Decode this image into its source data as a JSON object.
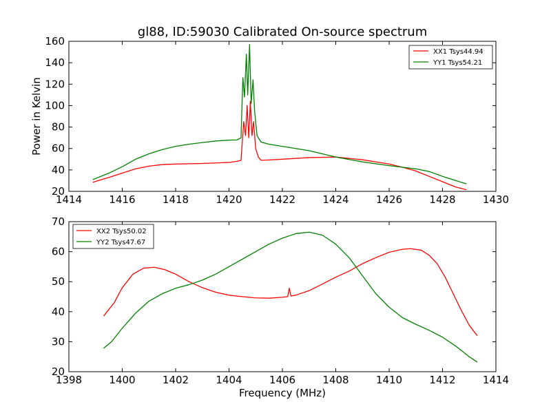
{
  "chart_data": [
    {
      "type": "line",
      "title": "gl88, ID:59030 Calibrated On-source spectrum",
      "xlabel": "",
      "ylabel": "Power in Kelvin",
      "xlim": [
        1414,
        1430
      ],
      "ylim": [
        20,
        160
      ],
      "xticks": [
        "1414",
        "1416",
        "1418",
        "1420",
        "1422",
        "1424",
        "1426",
        "1428",
        "1430"
      ],
      "yticks": [
        "20",
        "40",
        "60",
        "80",
        "100",
        "120",
        "140",
        "160"
      ],
      "legend_position": "top-right",
      "series": [
        {
          "name": "XX1 Tsys44.94",
          "color": "#ff0000",
          "points": [
            [
              1414.9,
              28.5
            ],
            [
              1415.5,
              33
            ],
            [
              1416,
              37
            ],
            [
              1416.5,
              41
            ],
            [
              1417,
              43.5
            ],
            [
              1417.5,
              45
            ],
            [
              1418,
              45.5
            ],
            [
              1419,
              46
            ],
            [
              1419.5,
              46.5
            ],
            [
              1420,
              47
            ],
            [
              1420.3,
              48
            ],
            [
              1420.45,
              49
            ],
            [
              1420.55,
              85
            ],
            [
              1420.62,
              72
            ],
            [
              1420.68,
              100
            ],
            [
              1420.74,
              70
            ],
            [
              1420.8,
              104
            ],
            [
              1420.86,
              72
            ],
            [
              1420.92,
              85
            ],
            [
              1421.0,
              60
            ],
            [
              1421.1,
              52
            ],
            [
              1421.2,
              49
            ],
            [
              1421.5,
              49.3
            ],
            [
              1422,
              50
            ],
            [
              1423,
              51.5
            ],
            [
              1424,
              52
            ],
            [
              1425,
              49.5
            ],
            [
              1426,
              45.5
            ],
            [
              1426.5,
              42.5
            ],
            [
              1427,
              39
            ],
            [
              1427.5,
              34
            ],
            [
              1428,
              29
            ],
            [
              1428.5,
              24
            ],
            [
              1428.9,
              21.5
            ]
          ]
        },
        {
          "name": "YY1 Tsys54.21",
          "color": "#008000",
          "points": [
            [
              1414.9,
              31
            ],
            [
              1415.5,
              37
            ],
            [
              1416,
              43
            ],
            [
              1416.5,
              50
            ],
            [
              1417,
              55
            ],
            [
              1417.5,
              59
            ],
            [
              1418,
              62
            ],
            [
              1418.5,
              64
            ],
            [
              1419,
              65.5
            ],
            [
              1419.5,
              67
            ],
            [
              1420,
              67.8
            ],
            [
              1420.3,
              68
            ],
            [
              1420.45,
              70
            ],
            [
              1420.52,
              126
            ],
            [
              1420.58,
              108
            ],
            [
              1420.65,
              148
            ],
            [
              1420.7,
              110
            ],
            [
              1420.77,
              157
            ],
            [
              1420.83,
              102
            ],
            [
              1420.9,
              124
            ],
            [
              1420.96,
              95
            ],
            [
              1421.05,
              72
            ],
            [
              1421.2,
              66
            ],
            [
              1421.5,
              64
            ],
            [
              1422,
              62
            ],
            [
              1423,
              58
            ],
            [
              1424,
              52
            ],
            [
              1425,
              47.5
            ],
            [
              1426,
              44
            ],
            [
              1427,
              41
            ],
            [
              1427.5,
              38.5
            ],
            [
              1428,
              34
            ],
            [
              1428.5,
              30
            ],
            [
              1428.9,
              27
            ]
          ]
        }
      ]
    },
    {
      "type": "line",
      "title": "",
      "xlabel": "Frequency (MHz)",
      "ylabel": "",
      "xlim": [
        1398,
        1414
      ],
      "ylim": [
        20,
        70
      ],
      "xticks": [
        "1398",
        "1400",
        "1402",
        "1404",
        "1406",
        "1408",
        "1410",
        "1412",
        "1414"
      ],
      "yticks": [
        "20",
        "30",
        "40",
        "50",
        "60",
        "70"
      ],
      "legend_position": "top-left",
      "series": [
        {
          "name": "XX2 Tsys50.02",
          "color": "#ff0000",
          "points": [
            [
              1399.3,
              38.5
            ],
            [
              1399.7,
              43
            ],
            [
              1400.0,
              48
            ],
            [
              1400.4,
              52.5
            ],
            [
              1400.8,
              54.5
            ],
            [
              1401.2,
              54.8
            ],
            [
              1401.6,
              54
            ],
            [
              1402.0,
              52.5
            ],
            [
              1402.5,
              50
            ],
            [
              1403.0,
              48
            ],
            [
              1403.5,
              46.5
            ],
            [
              1404.0,
              45.5
            ],
            [
              1404.5,
              45
            ],
            [
              1405.0,
              44.6
            ],
            [
              1405.5,
              44.5
            ],
            [
              1406.0,
              44.8
            ],
            [
              1406.2,
              45
            ],
            [
              1406.26,
              47.8
            ],
            [
              1406.32,
              45.2
            ],
            [
              1406.5,
              45.5
            ],
            [
              1407.0,
              47
            ],
            [
              1407.5,
              49.2
            ],
            [
              1408.0,
              51.5
            ],
            [
              1408.5,
              53.5
            ],
            [
              1409.0,
              56
            ],
            [
              1409.5,
              58
            ],
            [
              1410.0,
              59.8
            ],
            [
              1410.5,
              60.8
            ],
            [
              1410.8,
              61
            ],
            [
              1411.2,
              60.5
            ],
            [
              1411.5,
              58.8
            ],
            [
              1411.8,
              56
            ],
            [
              1412.1,
              51.5
            ],
            [
              1412.4,
              46
            ],
            [
              1412.7,
              40.5
            ],
            [
              1413.0,
              35.5
            ],
            [
              1413.3,
              32
            ]
          ]
        },
        {
          "name": "YY2 Tsys47.67",
          "color": "#008000",
          "points": [
            [
              1399.3,
              27.8
            ],
            [
              1399.6,
              30
            ],
            [
              1400.0,
              34.5
            ],
            [
              1400.5,
              39.5
            ],
            [
              1401.0,
              43.5
            ],
            [
              1401.5,
              46
            ],
            [
              1402.0,
              47.8
            ],
            [
              1402.5,
              49
            ],
            [
              1403.0,
              50.5
            ],
            [
              1403.5,
              52.5
            ],
            [
              1404.0,
              55
            ],
            [
              1404.5,
              57.5
            ],
            [
              1405.0,
              60
            ],
            [
              1405.5,
              62.5
            ],
            [
              1406.0,
              64.5
            ],
            [
              1406.5,
              66
            ],
            [
              1407.0,
              66.5
            ],
            [
              1407.5,
              65.5
            ],
            [
              1408.0,
              62.5
            ],
            [
              1408.5,
              58
            ],
            [
              1409.0,
              52
            ],
            [
              1409.5,
              46
            ],
            [
              1410.0,
              41.5
            ],
            [
              1410.5,
              38
            ],
            [
              1411.0,
              35.8
            ],
            [
              1411.5,
              33.8
            ],
            [
              1412.0,
              31.5
            ],
            [
              1412.5,
              28.5
            ],
            [
              1413.0,
              25
            ],
            [
              1413.3,
              23.2
            ]
          ]
        }
      ]
    }
  ]
}
